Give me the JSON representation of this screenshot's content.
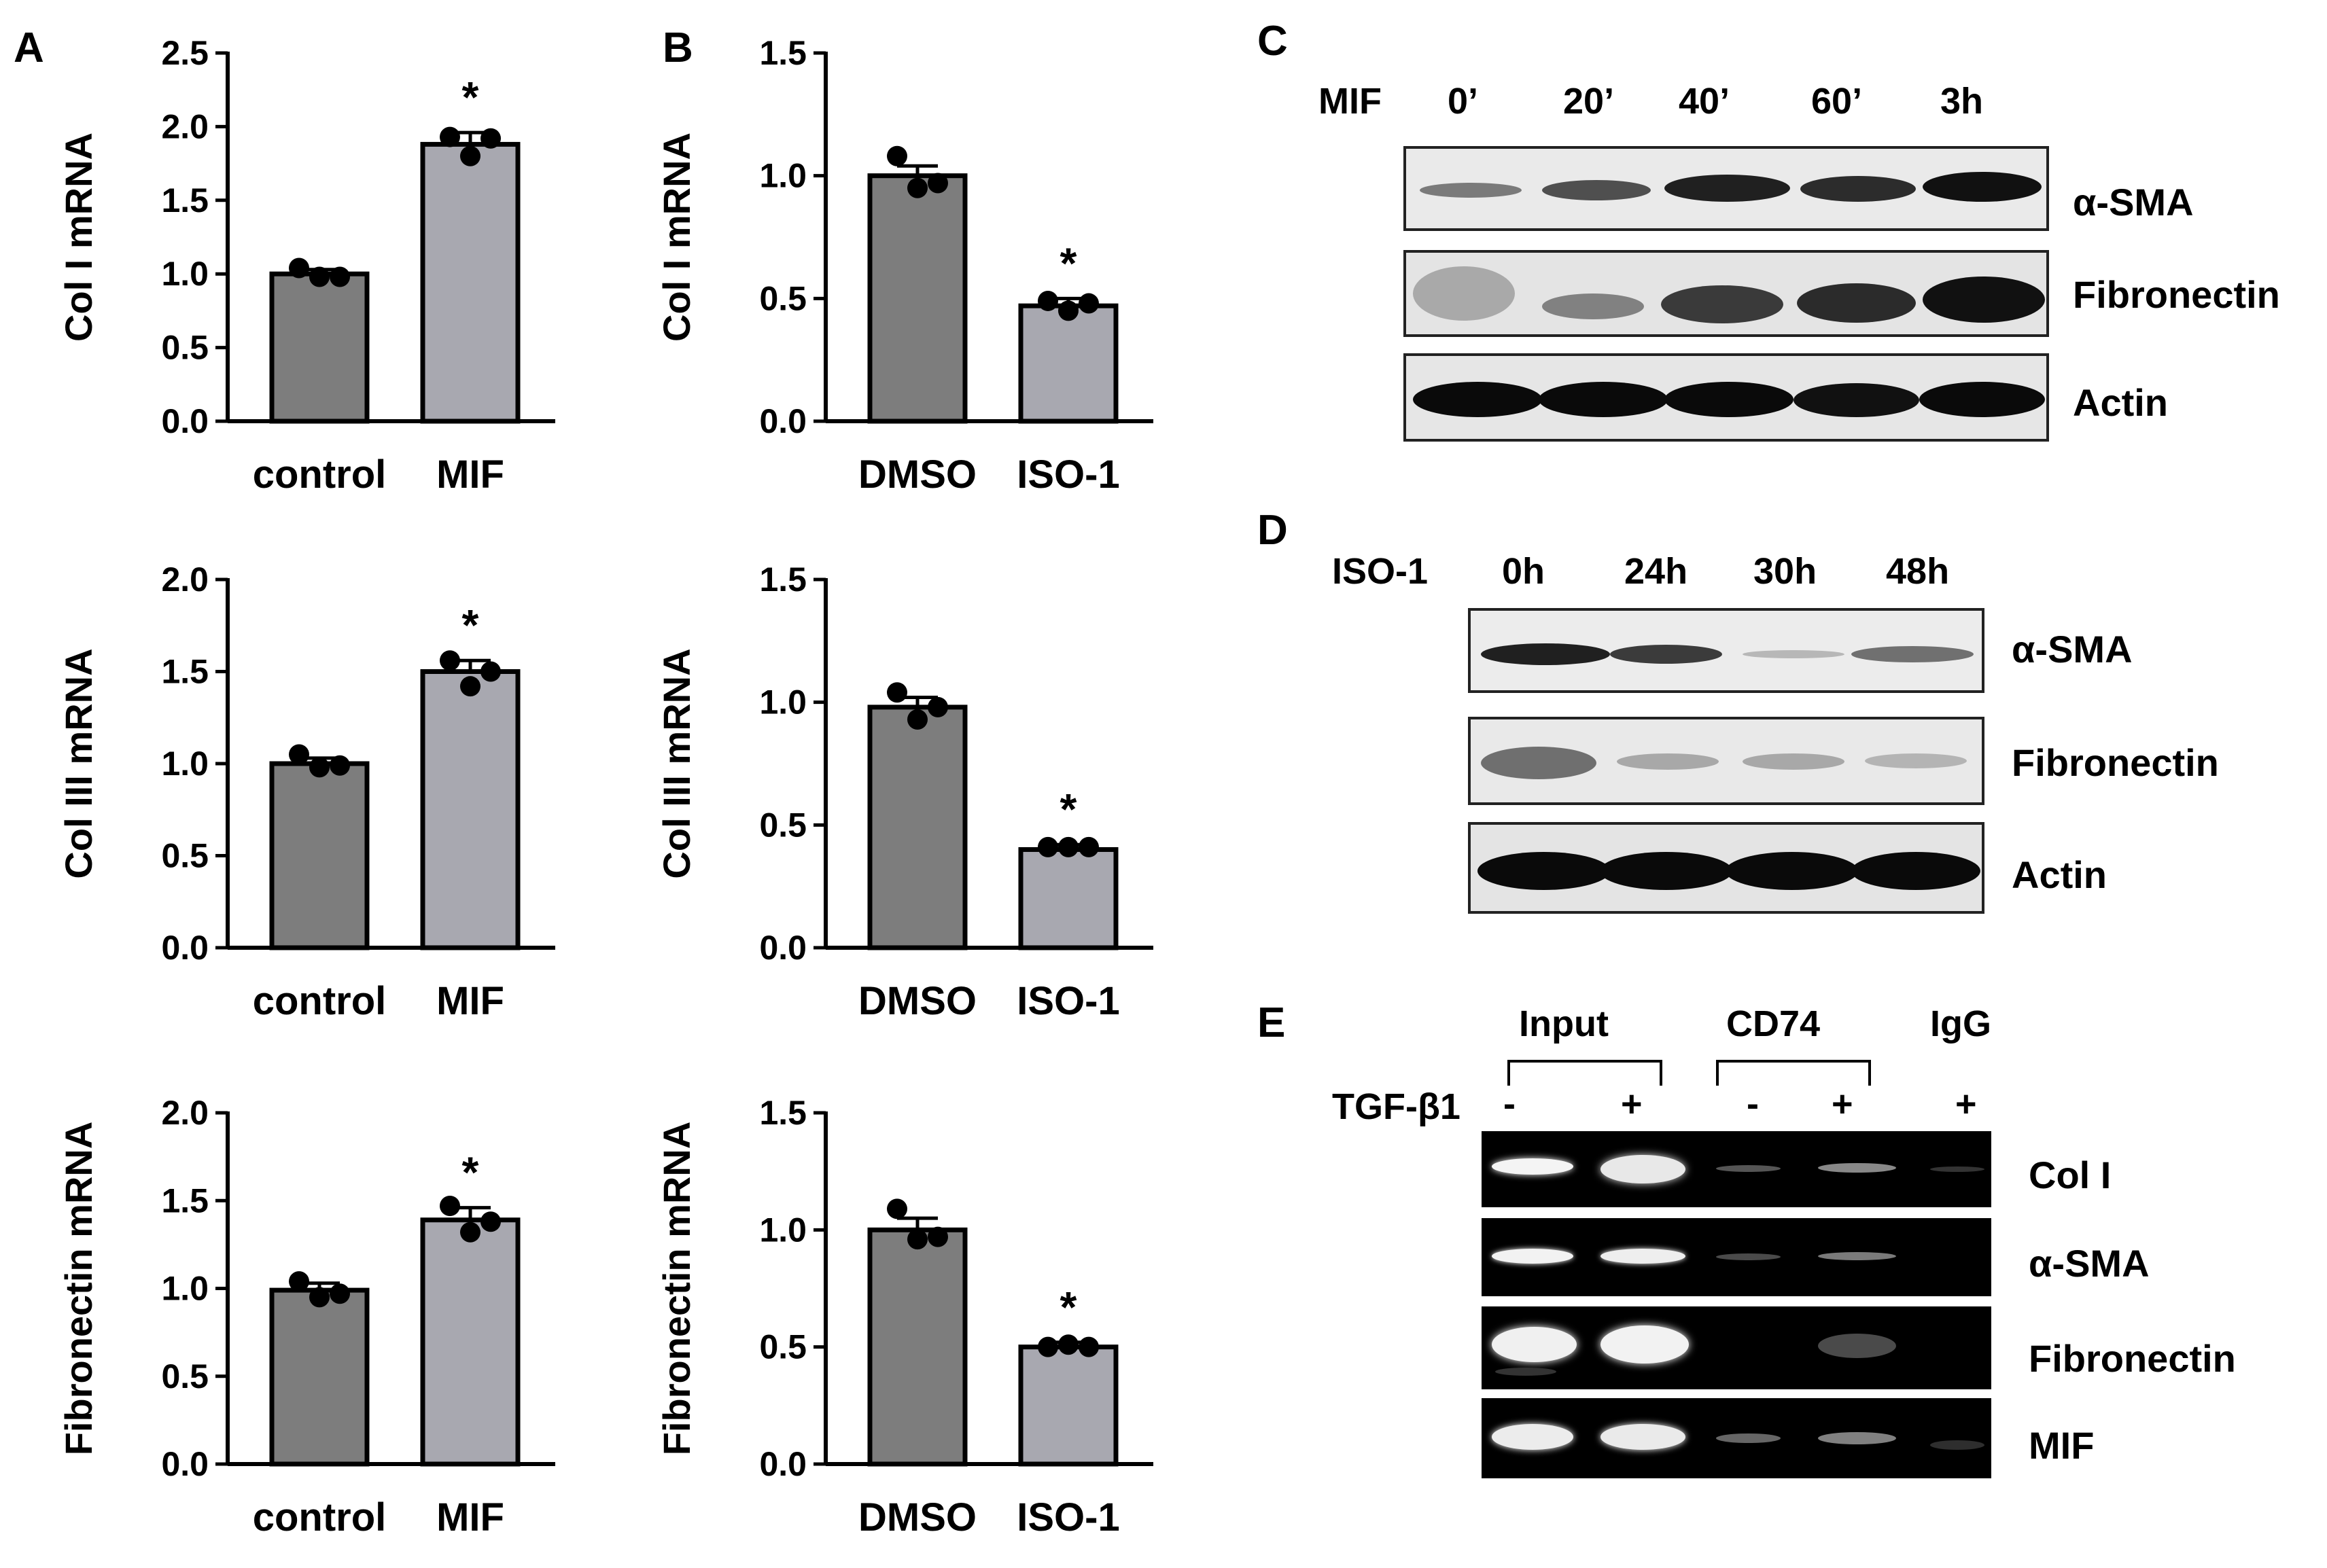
{
  "panel_labels": {
    "A": "A",
    "B": "B",
    "C": "C",
    "D": "D",
    "E": "E"
  },
  "chart_data": [
    {
      "id": "A1",
      "type": "bar",
      "categories": [
        "control",
        "MIF"
      ],
      "values": [
        1.0,
        1.88
      ],
      "errors": [
        0.03,
        0.08
      ],
      "points": [
        [
          1.04,
          0.98,
          0.98
        ],
        [
          1.93,
          1.8,
          1.92
        ]
      ],
      "ylabel": "Col I mRNA",
      "ylim": [
        0,
        2.5
      ],
      "yticks": [
        "0.0",
        "0.5",
        "1.0",
        "1.5",
        "2.0",
        "2.5"
      ],
      "significance": [
        "",
        "*"
      ],
      "colors": [
        "#7d7d7d",
        "#a8a8b0"
      ]
    },
    {
      "id": "A2",
      "type": "bar",
      "categories": [
        "control",
        "MIF"
      ],
      "values": [
        1.0,
        1.5
      ],
      "errors": [
        0.03,
        0.06
      ],
      "points": [
        [
          1.05,
          0.98,
          0.99
        ],
        [
          1.56,
          1.42,
          1.5
        ]
      ],
      "ylabel": "Col III mRNA",
      "ylim": [
        0,
        2.0
      ],
      "yticks": [
        "0.0",
        "0.5",
        "1.0",
        "1.5",
        "2.0"
      ],
      "significance": [
        "",
        "*"
      ],
      "colors": [
        "#7d7d7d",
        "#a8a8b0"
      ]
    },
    {
      "id": "A3",
      "type": "bar",
      "categories": [
        "control",
        "MIF"
      ],
      "values": [
        0.99,
        1.39
      ],
      "errors": [
        0.04,
        0.07
      ],
      "points": [
        [
          1.04,
          0.95,
          0.97
        ],
        [
          1.47,
          1.32,
          1.38
        ]
      ],
      "ylabel": "Fibronectin mRNA",
      "ylim": [
        0,
        2.0
      ],
      "yticks": [
        "0.0",
        "0.5",
        "1.0",
        "1.5",
        "2.0"
      ],
      "significance": [
        "",
        "*"
      ],
      "colors": [
        "#7d7d7d",
        "#a8a8b0"
      ]
    },
    {
      "id": "B1",
      "type": "bar",
      "categories": [
        "DMSO",
        "ISO-1"
      ],
      "values": [
        1.0,
        0.47
      ],
      "errors": [
        0.04,
        0.03
      ],
      "points": [
        [
          1.08,
          0.95,
          0.97
        ],
        [
          0.49,
          0.45,
          0.48
        ]
      ],
      "ylabel": "Col I mRNA",
      "ylim": [
        0,
        1.5
      ],
      "yticks": [
        "0.0",
        "0.5",
        "1.0",
        "1.5"
      ],
      "significance": [
        "",
        "*"
      ],
      "colors": [
        "#7d7d7d",
        "#a8a8b0"
      ]
    },
    {
      "id": "B2",
      "type": "bar",
      "categories": [
        "DMSO",
        "ISO-1"
      ],
      "values": [
        0.98,
        0.4
      ],
      "errors": [
        0.04,
        0.02
      ],
      "points": [
        [
          1.04,
          0.93,
          0.98
        ],
        [
          0.41,
          0.41,
          0.41
        ]
      ],
      "ylabel": "Col III mRNA",
      "ylim": [
        0,
        1.5
      ],
      "yticks": [
        "0.0",
        "0.5",
        "1.0",
        "1.5"
      ],
      "significance": [
        "",
        "*"
      ],
      "colors": [
        "#7d7d7d",
        "#a8a8b0"
      ]
    },
    {
      "id": "B3",
      "type": "bar",
      "categories": [
        "DMSO",
        "ISO-1"
      ],
      "values": [
        1.0,
        0.5
      ],
      "errors": [
        0.05,
        0.02
      ],
      "points": [
        [
          1.09,
          0.96,
          0.97
        ],
        [
          0.5,
          0.51,
          0.5
        ]
      ],
      "ylabel": "Fibronectin mRNA",
      "ylim": [
        0,
        1.5
      ],
      "yticks": [
        "0.0",
        "0.5",
        "1.0",
        "1.5"
      ],
      "significance": [
        "",
        "*"
      ],
      "colors": [
        "#7d7d7d",
        "#a8a8b0"
      ]
    }
  ],
  "blot_C": {
    "label_prefix": "MIF",
    "lanes": [
      "0’",
      "20’",
      "40’",
      "60’",
      "3h"
    ],
    "rows": [
      "α-SMA",
      "Fibronectin",
      "Actin"
    ]
  },
  "blot_D": {
    "label_prefix": "ISO-1",
    "lanes": [
      "0h",
      "24h",
      "30h",
      "48h"
    ],
    "rows": [
      "α-SMA",
      "Fibronectin",
      "Actin"
    ]
  },
  "gel_E": {
    "groups": [
      "Input",
      "CD74",
      "IgG"
    ],
    "treatment_label": "TGF-β1",
    "signs": [
      "-",
      "+",
      "-",
      "+",
      "+"
    ],
    "rows": [
      "Col I",
      "α-SMA",
      "Fibronectin",
      "MIF"
    ]
  }
}
